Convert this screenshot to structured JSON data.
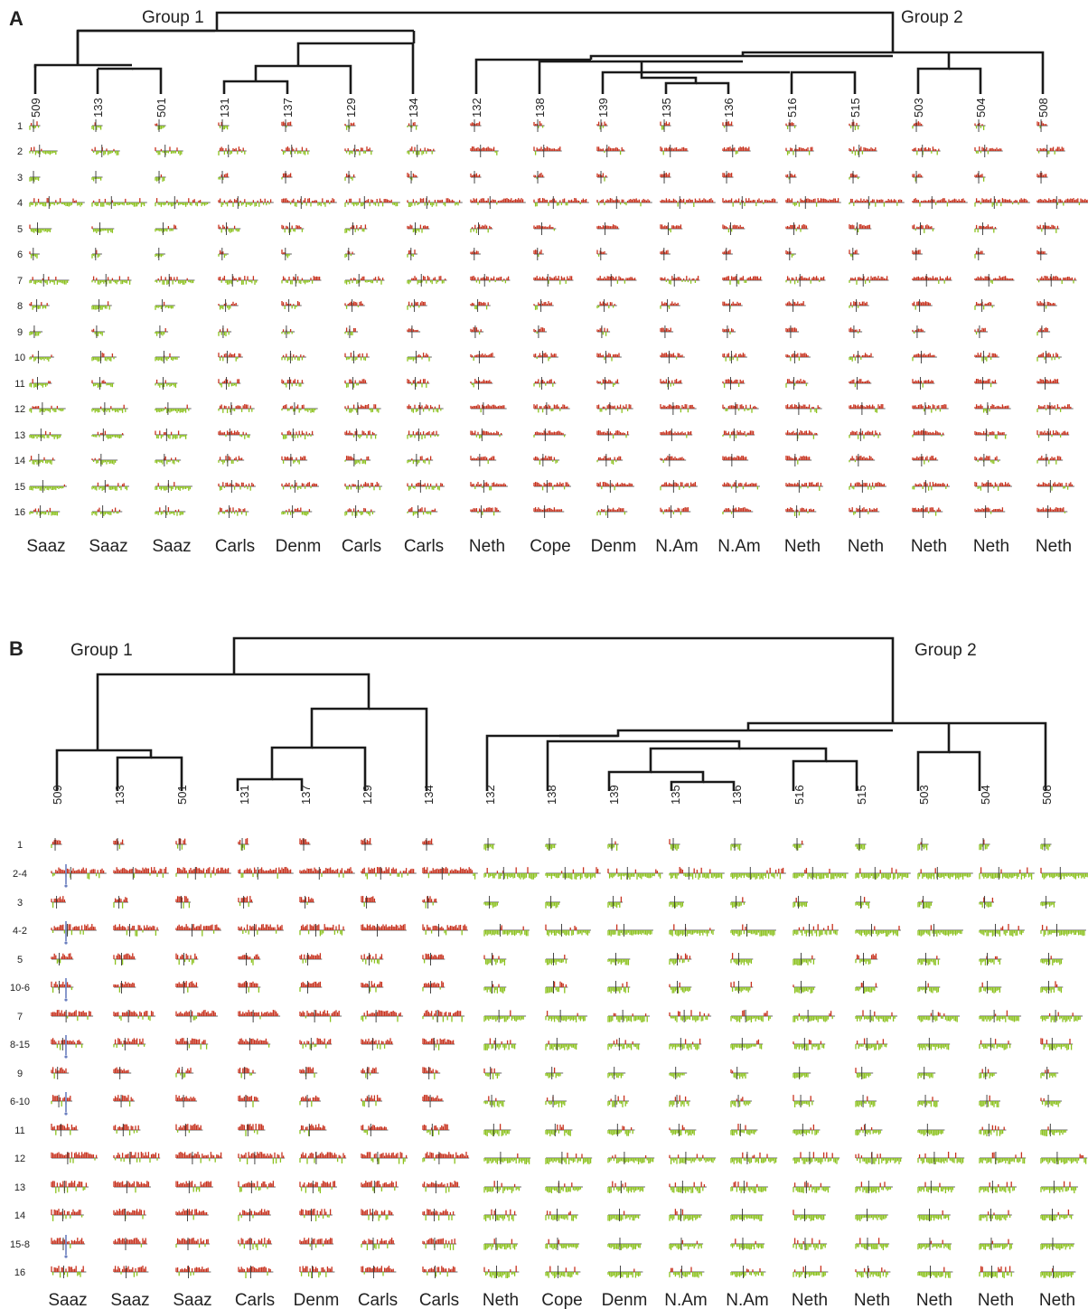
{
  "panels": [
    {
      "label": "A",
      "groups": [
        "Group 1",
        "Group 2"
      ],
      "samples": [
        {
          "id": "509",
          "origin": "Saaz"
        },
        {
          "id": "133",
          "origin": "Saaz"
        },
        {
          "id": "501",
          "origin": "Saaz"
        },
        {
          "id": "131",
          "origin": "Carls"
        },
        {
          "id": "137",
          "origin": "Denm"
        },
        {
          "id": "129",
          "origin": "Carls"
        },
        {
          "id": "134",
          "origin": "Carls"
        },
        {
          "id": "132",
          "origin": "Neth"
        },
        {
          "id": "138",
          "origin": "Cope"
        },
        {
          "id": "139",
          "origin": "Denm"
        },
        {
          "id": "135",
          "origin": "N.Am"
        },
        {
          "id": "136",
          "origin": "N.Am"
        },
        {
          "id": "516",
          "origin": "Neth"
        },
        {
          "id": "515",
          "origin": "Neth"
        },
        {
          "id": "503",
          "origin": "Neth"
        },
        {
          "id": "504",
          "origin": "Neth"
        },
        {
          "id": "508",
          "origin": "Neth"
        }
      ],
      "rows": [
        "1",
        "2",
        "3",
        "4",
        "5",
        "6",
        "7",
        "8",
        "9",
        "10",
        "11",
        "12",
        "13",
        "14",
        "15",
        "16"
      ]
    },
    {
      "label": "B",
      "groups": [
        "Group 1",
        "Group 2"
      ],
      "samples": [
        {
          "id": "509",
          "origin": "Saaz"
        },
        {
          "id": "133",
          "origin": "Saaz"
        },
        {
          "id": "501",
          "origin": "Saaz"
        },
        {
          "id": "131",
          "origin": "Carls"
        },
        {
          "id": "137",
          "origin": "Denm"
        },
        {
          "id": "129",
          "origin": "Carls"
        },
        {
          "id": "134",
          "origin": "Carls"
        },
        {
          "id": "132",
          "origin": "Neth"
        },
        {
          "id": "138",
          "origin": "Cope"
        },
        {
          "id": "139",
          "origin": "Denm"
        },
        {
          "id": "135",
          "origin": "N.Am"
        },
        {
          "id": "136",
          "origin": "N.Am"
        },
        {
          "id": "516",
          "origin": "Neth"
        },
        {
          "id": "515",
          "origin": "Neth"
        },
        {
          "id": "503",
          "origin": "Neth"
        },
        {
          "id": "504",
          "origin": "Neth"
        },
        {
          "id": "508",
          "origin": "Neth"
        }
      ],
      "rows": [
        "1",
        "2-4",
        "3",
        "4-2",
        "5",
        "10-6",
        "7",
        "8-15",
        "9",
        "6-10",
        "11",
        "12",
        "13",
        "14",
        "15-8",
        "16"
      ]
    }
  ],
  "colors": {
    "gain": "#c8321e",
    "loss": "#8cc21e",
    "marker": "#6b7fbf",
    "tree": "#1a1a1a",
    "baseline": "#333333"
  }
}
